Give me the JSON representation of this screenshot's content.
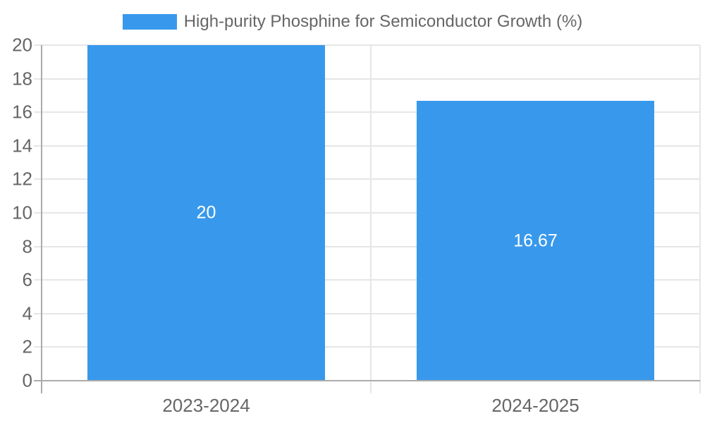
{
  "chart_data": {
    "type": "bar",
    "title": "",
    "legend": {
      "label": "High-purity Phosphine for Semiconductor Growth (%)",
      "position": "top"
    },
    "categories": [
      "2023-2024",
      "2024-2025"
    ],
    "series": [
      {
        "name": "High-purity Phosphine for Semiconductor Growth (%)",
        "values": [
          20,
          16.67
        ],
        "value_labels": [
          "20",
          "16.67"
        ]
      }
    ],
    "ylim": [
      0,
      20
    ],
    "yticks": [
      0,
      2,
      4,
      6,
      8,
      10,
      12,
      14,
      16,
      18,
      20
    ],
    "xlabel": "",
    "ylabel": "",
    "grid": true,
    "legend_position": "top",
    "colors": {
      "bar": "#3899ec",
      "bar_value_text": "#ffffff",
      "tick_text": "#666666",
      "legend_text": "#666666",
      "gridline": "#e6e6e6",
      "axis": "#ababab",
      "background": "#ffffff"
    }
  }
}
